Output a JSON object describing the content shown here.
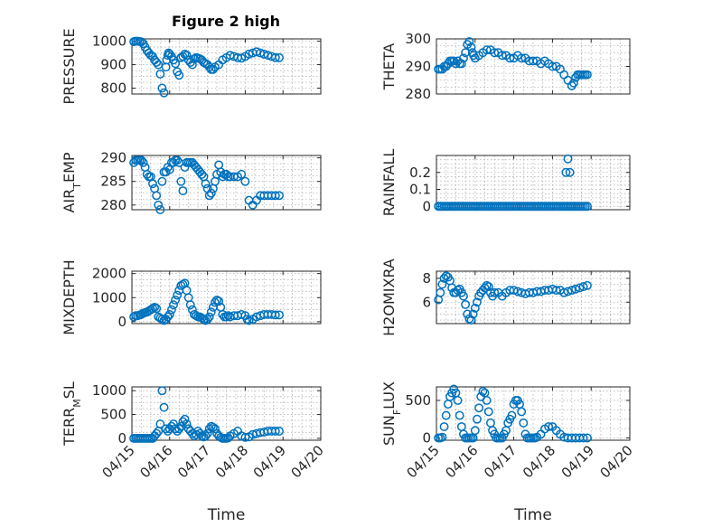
{
  "figure": {
    "title": "Figure 2 high",
    "marker_color": "#0072BD"
  },
  "chart_data": [
    {
      "type": "scatter",
      "ylabel": "PRESSURE",
      "ylim": [
        775,
        1010
      ],
      "yticks": [
        800,
        900,
        1000
      ],
      "xlim": [
        0,
        5
      ],
      "xticks": [
        "04/15",
        "04/16",
        "04/17",
        "04/18",
        "04/19",
        "04/20"
      ],
      "xlabel": "",
      "grid": true,
      "x": [
        0.05,
        0.1,
        0.15,
        0.2,
        0.25,
        0.3,
        0.35,
        0.4,
        0.45,
        0.5,
        0.55,
        0.6,
        0.65,
        0.7,
        0.75,
        0.8,
        0.85,
        0.9,
        0.92,
        0.95,
        0.97,
        1.0,
        1.05,
        1.1,
        1.15,
        1.2,
        1.25,
        1.3,
        1.35,
        1.4,
        1.45,
        1.5,
        1.55,
        1.6,
        1.65,
        1.7,
        1.75,
        1.8,
        1.85,
        1.9,
        1.95,
        2.0,
        2.05,
        2.1,
        2.15,
        2.2,
        2.3,
        2.4,
        2.5,
        2.6,
        2.7,
        2.8,
        2.9,
        3.0,
        3.1,
        3.2,
        3.3,
        3.4,
        3.5,
        3.6,
        3.7,
        3.8,
        3.9
      ],
      "y": [
        998,
        1000,
        1000,
        999,
        997,
        990,
        975,
        960,
        950,
        940,
        935,
        920,
        910,
        900,
        860,
        800,
        780,
        890,
        920,
        940,
        950,
        945,
        935,
        920,
        905,
        870,
        855,
        930,
        935,
        945,
        940,
        920,
        910,
        900,
        925,
        930,
        928,
        925,
        920,
        910,
        905,
        900,
        890,
        880,
        880,
        890,
        900,
        920,
        930,
        940,
        935,
        930,
        928,
        935,
        945,
        950,
        955,
        950,
        945,
        940,
        935,
        930,
        930
      ]
    },
    {
      "type": "scatter",
      "ylabel": "THETA",
      "ylim": [
        280,
        300
      ],
      "yticks": [
        280,
        290,
        300
      ],
      "xlim": [
        0,
        5
      ],
      "xticks": [
        "04/15",
        "04/16",
        "04/17",
        "04/18",
        "04/19",
        "04/20"
      ],
      "xlabel": "",
      "grid": true,
      "x": [
        0.05,
        0.1,
        0.15,
        0.2,
        0.25,
        0.3,
        0.35,
        0.4,
        0.45,
        0.5,
        0.55,
        0.6,
        0.65,
        0.7,
        0.75,
        0.8,
        0.85,
        0.9,
        0.93,
        0.96,
        1.0,
        1.1,
        1.2,
        1.3,
        1.4,
        1.5,
        1.6,
        1.7,
        1.8,
        1.9,
        2.0,
        2.1,
        2.2,
        2.3,
        2.4,
        2.5,
        2.6,
        2.7,
        2.8,
        2.9,
        3.0,
        3.1,
        3.2,
        3.3,
        3.4,
        3.5,
        3.55,
        3.6,
        3.65,
        3.7,
        3.75,
        3.8,
        3.85,
        3.9
      ],
      "y": [
        289,
        289,
        289,
        290,
        290,
        291,
        292,
        292,
        292,
        291,
        292,
        291,
        291,
        293,
        295,
        298,
        299,
        297,
        295,
        294,
        293,
        294,
        295,
        296,
        296,
        295,
        295,
        294,
        294,
        293,
        293,
        294,
        293,
        293,
        292,
        292,
        292,
        291,
        292,
        291,
        290,
        290,
        289,
        287,
        285,
        283,
        284,
        286,
        287,
        287,
        287,
        287,
        287,
        287
      ]
    },
    {
      "type": "scatter",
      "ylabel": "AIR_TEMP",
      "ylim": [
        279,
        290.5
      ],
      "yticks": [
        280,
        285,
        290
      ],
      "xlim": [
        0,
        5
      ],
      "xticks": [
        "04/15",
        "04/16",
        "04/17",
        "04/18",
        "04/19",
        "04/20"
      ],
      "xlabel": "",
      "grid": true,
      "x": [
        0.05,
        0.1,
        0.15,
        0.2,
        0.25,
        0.3,
        0.35,
        0.4,
        0.45,
        0.5,
        0.55,
        0.6,
        0.65,
        0.7,
        0.75,
        0.8,
        0.85,
        0.9,
        0.95,
        1.0,
        1.05,
        1.1,
        1.15,
        1.2,
        1.25,
        1.3,
        1.35,
        1.4,
        1.45,
        1.5,
        1.55,
        1.6,
        1.65,
        1.7,
        1.75,
        1.8,
        1.85,
        1.9,
        1.95,
        2.0,
        2.05,
        2.1,
        2.15,
        2.2,
        2.25,
        2.3,
        2.35,
        2.4,
        2.45,
        2.5,
        2.55,
        2.6,
        2.7,
        2.8,
        2.9,
        3.0,
        3.1,
        3.2,
        3.3,
        3.4,
        3.5,
        3.6,
        3.7,
        3.8,
        3.9
      ],
      "y": [
        289,
        289.5,
        289.5,
        289.5,
        289.5,
        289,
        288,
        286.5,
        286,
        286,
        284.5,
        283.5,
        282,
        280,
        279,
        285,
        287,
        287,
        288,
        287.5,
        289,
        289,
        289.5,
        289.5,
        289,
        285,
        283,
        288,
        289,
        289,
        289,
        289,
        288.5,
        288,
        287.5,
        287,
        286.5,
        286,
        284.5,
        283.5,
        282,
        282.5,
        283.5,
        285,
        286.5,
        288.5,
        287,
        286,
        286.5,
        286.5,
        286,
        286,
        286,
        286,
        286.5,
        285,
        281,
        280,
        281,
        282,
        282,
        282,
        282,
        282,
        282
      ]
    },
    {
      "type": "scatter",
      "ylabel": "RAINFALL",
      "ylim": [
        -0.02,
        0.3
      ],
      "yticks": [
        0,
        0.1,
        0.2
      ],
      "xlim": [
        0,
        5
      ],
      "xticks": [
        "04/15",
        "04/16",
        "04/17",
        "04/18",
        "04/19",
        "04/20"
      ],
      "xlabel": "",
      "grid": true,
      "x": [
        0.05,
        0.1,
        0.15,
        0.2,
        0.25,
        0.3,
        0.35,
        0.4,
        0.45,
        0.5,
        0.55,
        0.6,
        0.65,
        0.7,
        0.75,
        0.8,
        0.85,
        0.9,
        0.95,
        1.0,
        1.05,
        1.1,
        1.15,
        1.2,
        1.25,
        1.3,
        1.35,
        1.4,
        1.45,
        1.5,
        1.55,
        1.6,
        1.65,
        1.7,
        1.75,
        1.8,
        1.85,
        1.9,
        1.95,
        2.0,
        2.05,
        2.1,
        2.15,
        2.2,
        2.25,
        2.3,
        2.35,
        2.4,
        2.45,
        2.5,
        2.55,
        2.6,
        2.65,
        2.7,
        2.75,
        2.8,
        2.85,
        2.9,
        2.95,
        3.0,
        3.05,
        3.1,
        3.15,
        3.2,
        3.25,
        3.3,
        3.35,
        3.4,
        3.45,
        3.5,
        3.55,
        3.6,
        3.65,
        3.7,
        3.75,
        3.8,
        3.85,
        3.9,
        3.35,
        3.4,
        3.45
      ],
      "y": [
        0,
        0,
        0,
        0,
        0,
        0,
        0,
        0,
        0,
        0,
        0,
        0,
        0,
        0,
        0,
        0,
        0,
        0,
        0,
        0,
        0,
        0,
        0,
        0,
        0,
        0,
        0,
        0,
        0,
        0,
        0,
        0,
        0,
        0,
        0,
        0,
        0,
        0,
        0,
        0,
        0,
        0,
        0,
        0,
        0,
        0,
        0,
        0,
        0,
        0,
        0,
        0,
        0,
        0,
        0,
        0,
        0,
        0,
        0,
        0,
        0,
        0,
        0,
        0,
        0,
        0,
        0,
        0,
        0,
        0,
        0,
        0,
        0,
        0,
        0,
        0,
        0,
        0,
        0.2,
        0.28,
        0.2
      ]
    },
    {
      "type": "scatter",
      "ylabel": "MIXDEPTH",
      "ylim": [
        -80,
        2100
      ],
      "yticks": [
        0,
        1000,
        2000
      ],
      "xlim": [
        0,
        5
      ],
      "xticks": [
        "04/15",
        "04/16",
        "04/17",
        "04/18",
        "04/19",
        "04/20"
      ],
      "xlabel": "",
      "grid": true,
      "x": [
        0.05,
        0.1,
        0.15,
        0.2,
        0.25,
        0.3,
        0.35,
        0.4,
        0.45,
        0.5,
        0.55,
        0.6,
        0.65,
        0.7,
        0.75,
        0.8,
        0.85,
        0.9,
        0.95,
        1.0,
        1.05,
        1.1,
        1.15,
        1.2,
        1.25,
        1.3,
        1.35,
        1.4,
        1.45,
        1.5,
        1.55,
        1.6,
        1.65,
        1.7,
        1.75,
        1.8,
        1.85,
        1.9,
        1.95,
        2.0,
        2.05,
        2.1,
        2.15,
        2.2,
        2.25,
        2.3,
        2.35,
        2.4,
        2.45,
        2.5,
        2.55,
        2.6,
        2.7,
        2.8,
        2.9,
        3.0,
        3.05,
        3.1,
        3.2,
        3.3,
        3.4,
        3.5,
        3.6,
        3.7,
        3.8,
        3.9
      ],
      "y": [
        200,
        250,
        250,
        280,
        300,
        350,
        380,
        400,
        450,
        500,
        550,
        600,
        550,
        200,
        150,
        100,
        50,
        100,
        200,
        300,
        500,
        700,
        900,
        1100,
        1300,
        1500,
        1550,
        1600,
        1300,
        1000,
        700,
        500,
        300,
        250,
        200,
        200,
        150,
        100,
        50,
        100,
        200,
        400,
        600,
        800,
        900,
        850,
        600,
        300,
        200,
        200,
        250,
        200,
        250,
        250,
        300,
        250,
        100,
        50,
        100,
        200,
        250,
        300,
        300,
        300,
        280,
        280
      ]
    },
    {
      "type": "scatter",
      "ylabel": "H2OMIXRA",
      "ylim": [
        4.2,
        8.6
      ],
      "yticks": [
        6,
        8
      ],
      "xlim": [
        0,
        5
      ],
      "xticks": [
        "04/15",
        "04/16",
        "04/17",
        "04/18",
        "04/19",
        "04/20"
      ],
      "xlabel": "",
      "grid": true,
      "x": [
        0.05,
        0.1,
        0.15,
        0.2,
        0.25,
        0.3,
        0.35,
        0.4,
        0.45,
        0.5,
        0.55,
        0.6,
        0.65,
        0.7,
        0.75,
        0.8,
        0.85,
        0.9,
        0.95,
        1.0,
        1.05,
        1.1,
        1.15,
        1.2,
        1.25,
        1.3,
        1.35,
        1.4,
        1.45,
        1.5,
        1.6,
        1.7,
        1.8,
        1.9,
        2.0,
        2.1,
        2.2,
        2.3,
        2.4,
        2.5,
        2.6,
        2.7,
        2.8,
        2.9,
        3.0,
        3.1,
        3.2,
        3.3,
        3.4,
        3.5,
        3.6,
        3.7,
        3.8,
        3.9
      ],
      "y": [
        6.2,
        6.8,
        7.5,
        8.0,
        8.2,
        8.1,
        7.8,
        7.2,
        6.8,
        6.8,
        7.0,
        7.1,
        6.8,
        6.5,
        5.8,
        5.0,
        4.6,
        4.5,
        5.0,
        5.5,
        6.0,
        6.5,
        6.8,
        7.0,
        7.2,
        7.4,
        7.3,
        6.8,
        6.5,
        6.8,
        6.8,
        6.5,
        6.8,
        7.0,
        7.0,
        6.9,
        6.8,
        6.7,
        6.8,
        6.8,
        6.9,
        6.9,
        7.0,
        7.0,
        7.1,
        7.0,
        7.0,
        6.8,
        6.9,
        7.0,
        7.1,
        7.2,
        7.3,
        7.4
      ]
    },
    {
      "type": "scatter",
      "ylabel": "TERR_MSL",
      "ylim": [
        -40,
        1080
      ],
      "yticks": [
        0,
        500,
        1000
      ],
      "xlim": [
        0,
        5
      ],
      "xticks": [
        "04/15",
        "04/16",
        "04/17",
        "04/18",
        "04/19",
        "04/20"
      ],
      "xlabel": "Time",
      "grid": true,
      "x": [
        0.05,
        0.1,
        0.15,
        0.2,
        0.25,
        0.3,
        0.35,
        0.4,
        0.45,
        0.5,
        0.55,
        0.6,
        0.65,
        0.7,
        0.75,
        0.8,
        0.85,
        0.9,
        0.95,
        1.0,
        1.05,
        1.1,
        1.15,
        1.2,
        1.25,
        1.3,
        1.35,
        1.4,
        1.45,
        1.5,
        1.55,
        1.6,
        1.65,
        1.7,
        1.75,
        1.8,
        1.85,
        1.9,
        1.95,
        2.0,
        2.05,
        2.1,
        2.15,
        2.2,
        2.25,
        2.3,
        2.35,
        2.4,
        2.45,
        2.5,
        2.55,
        2.6,
        2.7,
        2.8,
        2.9,
        3.0,
        3.1,
        3.2,
        3.3,
        3.4,
        3.5,
        3.6,
        3.7,
        3.8,
        3.9
      ],
      "y": [
        0,
        0,
        0,
        0,
        0,
        0,
        0,
        0,
        0,
        0,
        0,
        50,
        100,
        150,
        300,
        1000,
        650,
        200,
        150,
        200,
        250,
        300,
        200,
        150,
        200,
        250,
        350,
        400,
        300,
        200,
        150,
        100,
        50,
        80,
        150,
        100,
        50,
        30,
        50,
        100,
        200,
        250,
        230,
        200,
        100,
        50,
        20,
        0,
        0,
        0,
        10,
        50,
        100,
        150,
        50,
        20,
        30,
        80,
        100,
        120,
        130,
        150,
        150,
        150,
        150
      ]
    },
    {
      "type": "scatter",
      "ylabel": "SUN_FLUX",
      "ylim": [
        -30,
        680
      ],
      "yticks": [
        0,
        500
      ],
      "xlim": [
        0,
        5
      ],
      "xticks": [
        "04/15",
        "04/16",
        "04/17",
        "04/18",
        "04/19",
        "04/20"
      ],
      "xlabel": "Time",
      "grid": true,
      "x": [
        0.05,
        0.1,
        0.15,
        0.2,
        0.25,
        0.3,
        0.35,
        0.4,
        0.45,
        0.5,
        0.55,
        0.6,
        0.65,
        0.7,
        0.75,
        0.8,
        0.85,
        0.9,
        0.95,
        1.0,
        1.05,
        1.1,
        1.15,
        1.2,
        1.25,
        1.3,
        1.35,
        1.4,
        1.45,
        1.5,
        1.55,
        1.6,
        1.65,
        1.7,
        1.75,
        1.8,
        1.85,
        1.9,
        1.95,
        2.0,
        2.05,
        2.1,
        2.15,
        2.2,
        2.25,
        2.3,
        2.35,
        2.4,
        2.45,
        2.5,
        2.55,
        2.6,
        2.7,
        2.8,
        2.9,
        3.0,
        3.1,
        3.2,
        3.3,
        3.4,
        3.5,
        3.6,
        3.7,
        3.8,
        3.9
      ],
      "y": [
        0,
        0,
        10,
        150,
        300,
        450,
        550,
        600,
        650,
        600,
        500,
        300,
        150,
        50,
        0,
        0,
        0,
        0,
        0,
        100,
        250,
        400,
        550,
        620,
        600,
        500,
        350,
        200,
        100,
        50,
        0,
        0,
        0,
        0,
        50,
        100,
        200,
        250,
        300,
        450,
        500,
        500,
        450,
        350,
        200,
        50,
        0,
        0,
        0,
        0,
        0,
        10,
        50,
        120,
        150,
        150,
        100,
        50,
        10,
        0,
        0,
        0,
        0,
        0,
        0
      ]
    }
  ]
}
